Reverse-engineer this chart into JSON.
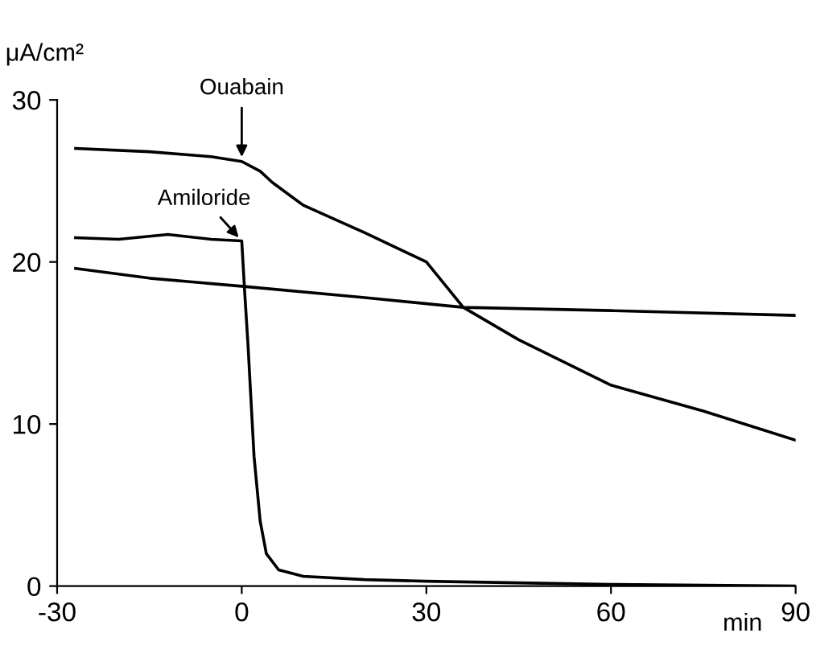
{
  "chart_data": {
    "type": "line",
    "xlabel": "min",
    "ylabel": "μA/cm²",
    "xlim": [
      -30,
      90
    ],
    "ylim": [
      0,
      30
    ],
    "xticks": [
      -30,
      0,
      30,
      60,
      90
    ],
    "yticks": [
      0,
      10,
      20,
      30
    ],
    "grid": false,
    "legend": false,
    "marker": "none",
    "line_style": "solid",
    "annotations": [
      {
        "text": "Ouabain",
        "x": 0,
        "y": 26.2
      },
      {
        "text": "Amiloride",
        "x": 0,
        "y": 21.3
      }
    ],
    "series": [
      {
        "color": "#000000",
        "x": [
          -27,
          -15,
          -5,
          0,
          3,
          5,
          10,
          20,
          30,
          36,
          45,
          60,
          75,
          90
        ],
        "values": [
          27.0,
          26.8,
          26.5,
          26.2,
          25.6,
          24.9,
          23.5,
          21.8,
          20.0,
          17.2,
          15.2,
          12.4,
          10.8,
          9.0
        ]
      },
      {
        "color": "#000000",
        "x": [
          -27,
          -20,
          -12,
          -5,
          0,
          0.5,
          1,
          2,
          3,
          4,
          6,
          10,
          20,
          30,
          60,
          90
        ],
        "values": [
          21.5,
          21.4,
          21.7,
          21.4,
          21.3,
          18,
          15,
          8,
          4,
          2,
          1.0,
          0.6,
          0.4,
          0.3,
          0.1,
          0
        ]
      },
      {
        "color": "#000000",
        "x": [
          -27,
          -15,
          0,
          20,
          36,
          60,
          90
        ],
        "values": [
          19.6,
          19.0,
          18.5,
          17.8,
          17.2,
          17.0,
          16.7
        ]
      }
    ]
  }
}
